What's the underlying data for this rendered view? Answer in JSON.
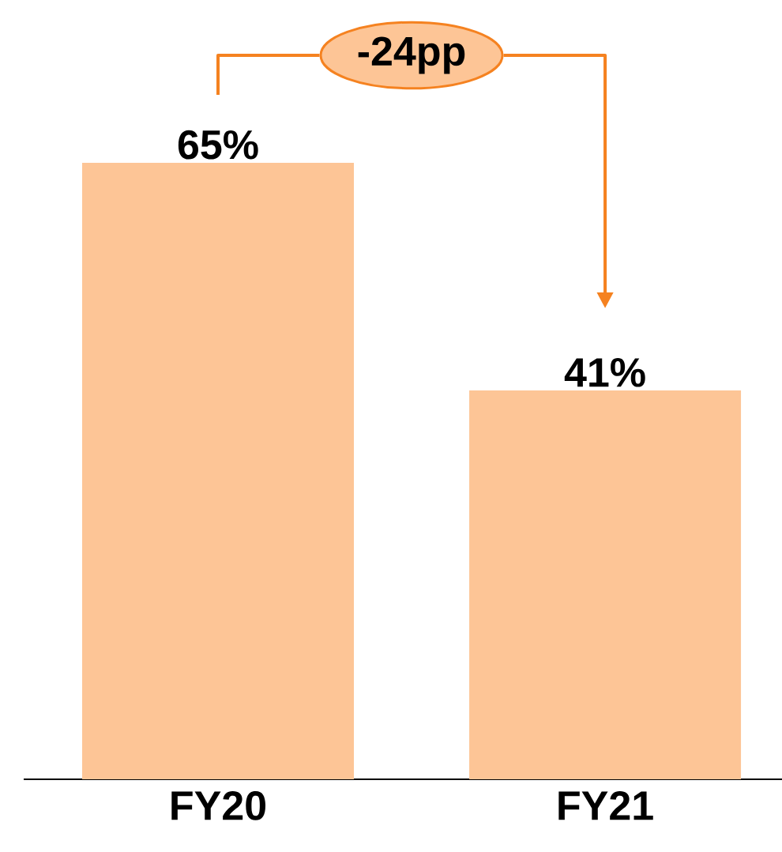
{
  "chart_data": {
    "type": "bar",
    "categories": [
      "FY20",
      "FY21"
    ],
    "values": [
      65,
      41
    ],
    "value_labels": [
      "65%",
      "41%"
    ],
    "color": "#fdc596",
    "annotations": [
      "-24pp"
    ]
  }
}
